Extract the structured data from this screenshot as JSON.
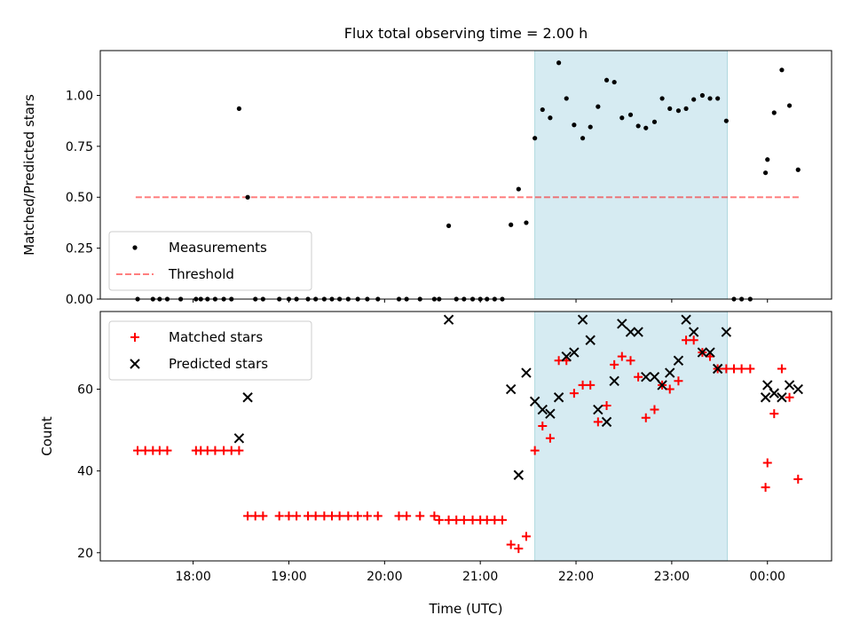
{
  "title": "Flux total observing time = 2.00 h",
  "chart_data": [
    {
      "type": "scatter",
      "ylabel": "Matched/Predicted stars",
      "xlim": [
        17.03,
        0.67
      ],
      "ylim": [
        0,
        1.22
      ],
      "yticks": [
        0.0,
        0.25,
        0.5,
        0.75,
        1.0
      ],
      "ytick_labels": [
        "0.00",
        "0.25",
        "0.50",
        "0.75",
        "1.00"
      ],
      "observing_window": [
        21.57,
        23.58
      ],
      "threshold": {
        "value": 0.5,
        "x_range": [
          17.4,
          0.33
        ]
      },
      "legend": {
        "placement": "lower-left",
        "entries": [
          "Measurements",
          "Threshold"
        ]
      },
      "series": [
        {
          "name": "Measurements",
          "color": "#000000",
          "points": [
            [
              17.42,
              0
            ],
            [
              17.58,
              0
            ],
            [
              17.65,
              0
            ],
            [
              17.73,
              0
            ],
            [
              17.87,
              0
            ],
            [
              18.03,
              0
            ],
            [
              18.08,
              0
            ],
            [
              18.15,
              0
            ],
            [
              18.23,
              0
            ],
            [
              18.32,
              0
            ],
            [
              18.4,
              0
            ],
            [
              18.48,
              0.935
            ],
            [
              18.57,
              0.5
            ],
            [
              18.65,
              0
            ],
            [
              18.73,
              0
            ],
            [
              18.9,
              0
            ],
            [
              19.0,
              0
            ],
            [
              19.08,
              0
            ],
            [
              19.2,
              0
            ],
            [
              19.28,
              0
            ],
            [
              19.37,
              0
            ],
            [
              19.45,
              0
            ],
            [
              19.53,
              0
            ],
            [
              19.62,
              0
            ],
            [
              19.72,
              0
            ],
            [
              19.82,
              0
            ],
            [
              19.93,
              0
            ],
            [
              20.15,
              0
            ],
            [
              20.23,
              0
            ],
            [
              20.37,
              0
            ],
            [
              20.52,
              0
            ],
            [
              20.57,
              0
            ],
            [
              20.67,
              0.36
            ],
            [
              20.75,
              0
            ],
            [
              20.83,
              0
            ],
            [
              20.92,
              0
            ],
            [
              21.0,
              0
            ],
            [
              21.07,
              0
            ],
            [
              21.15,
              0
            ],
            [
              21.23,
              0
            ],
            [
              21.32,
              0.365
            ],
            [
              21.4,
              0.54
            ],
            [
              21.48,
              0.375
            ],
            [
              21.57,
              0.79
            ],
            [
              21.65,
              0.93
            ],
            [
              21.73,
              0.89
            ],
            [
              21.82,
              1.16
            ],
            [
              21.9,
              0.985
            ],
            [
              21.98,
              0.855
            ],
            [
              22.07,
              0.79
            ],
            [
              22.15,
              0.845
            ],
            [
              22.23,
              0.945
            ],
            [
              22.32,
              1.075
            ],
            [
              22.4,
              1.065
            ],
            [
              22.48,
              0.89
            ],
            [
              22.57,
              0.905
            ],
            [
              22.65,
              0.85
            ],
            [
              22.73,
              0.84
            ],
            [
              22.82,
              0.87
            ],
            [
              22.9,
              0.985
            ],
            [
              22.98,
              0.935
            ],
            [
              23.07,
              0.925
            ],
            [
              23.15,
              0.935
            ],
            [
              23.23,
              0.98
            ],
            [
              23.32,
              1.0
            ],
            [
              23.4,
              0.985
            ],
            [
              23.48,
              0.985
            ],
            [
              23.57,
              0.875
            ],
            [
              23.65,
              0
            ],
            [
              23.73,
              0
            ],
            [
              23.82,
              0
            ],
            [
              23.98,
              0.62
            ],
            [
              24.0,
              0.685
            ],
            [
              24.07,
              0.915
            ],
            [
              24.15,
              1.125
            ],
            [
              24.23,
              0.95
            ],
            [
              24.32,
              0.635
            ]
          ]
        }
      ]
    },
    {
      "type": "scatter",
      "xlabel": "Time (UTC)",
      "ylabel": "Count",
      "xlim": [
        17.03,
        0.67
      ],
      "ylim": [
        18,
        79
      ],
      "yticks": [
        20,
        40,
        60
      ],
      "ytick_labels": [
        "20",
        "40",
        "60"
      ],
      "xtick_labels": [
        "18:00",
        "19:00",
        "20:00",
        "21:00",
        "22:00",
        "23:00",
        "00:00"
      ],
      "observing_window": [
        21.57,
        23.58
      ],
      "legend": {
        "placement": "top-left",
        "entries": [
          "Matched stars",
          "Predicted stars"
        ]
      },
      "series": [
        {
          "name": "Matched stars",
          "color": "#ff0000",
          "marker": "plus",
          "points": [
            [
              17.42,
              45
            ],
            [
              17.5,
              45
            ],
            [
              17.58,
              45
            ],
            [
              17.65,
              45
            ],
            [
              17.73,
              45
            ],
            [
              18.03,
              45
            ],
            [
              18.08,
              45
            ],
            [
              18.15,
              45
            ],
            [
              18.23,
              45
            ],
            [
              18.32,
              45
            ],
            [
              18.4,
              45
            ],
            [
              18.48,
              45
            ],
            [
              18.57,
              29
            ],
            [
              18.65,
              29
            ],
            [
              18.73,
              29
            ],
            [
              18.9,
              29
            ],
            [
              19.0,
              29
            ],
            [
              19.08,
              29
            ],
            [
              19.2,
              29
            ],
            [
              19.28,
              29
            ],
            [
              19.37,
              29
            ],
            [
              19.45,
              29
            ],
            [
              19.53,
              29
            ],
            [
              19.62,
              29
            ],
            [
              19.72,
              29
            ],
            [
              19.82,
              29
            ],
            [
              19.93,
              29
            ],
            [
              20.15,
              29
            ],
            [
              20.23,
              29
            ],
            [
              20.37,
              29
            ],
            [
              20.52,
              29
            ],
            [
              20.57,
              28
            ],
            [
              20.67,
              28
            ],
            [
              20.75,
              28
            ],
            [
              20.83,
              28
            ],
            [
              20.92,
              28
            ],
            [
              21.0,
              28
            ],
            [
              21.07,
              28
            ],
            [
              21.15,
              28
            ],
            [
              21.23,
              28
            ],
            [
              21.32,
              22
            ],
            [
              21.4,
              21
            ],
            [
              21.48,
              24
            ],
            [
              21.57,
              45
            ],
            [
              21.65,
              51
            ],
            [
              21.73,
              48
            ],
            [
              21.82,
              67
            ],
            [
              21.9,
              67
            ],
            [
              21.98,
              59
            ],
            [
              22.07,
              61
            ],
            [
              22.15,
              61
            ],
            [
              22.23,
              52
            ],
            [
              22.32,
              56
            ],
            [
              22.4,
              66
            ],
            [
              22.48,
              68
            ],
            [
              22.57,
              67
            ],
            [
              22.65,
              63
            ],
            [
              22.73,
              53
            ],
            [
              22.82,
              55
            ],
            [
              22.9,
              61
            ],
            [
              22.98,
              60
            ],
            [
              23.07,
              62
            ],
            [
              23.15,
              72
            ],
            [
              23.23,
              72
            ],
            [
              23.32,
              69
            ],
            [
              23.4,
              68
            ],
            [
              23.48,
              65
            ],
            [
              23.57,
              65
            ],
            [
              23.65,
              65
            ],
            [
              23.73,
              65
            ],
            [
              23.82,
              65
            ],
            [
              23.98,
              36
            ],
            [
              24.0,
              42
            ],
            [
              24.07,
              54
            ],
            [
              24.15,
              65
            ],
            [
              24.23,
              58
            ],
            [
              24.32,
              38
            ]
          ]
        },
        {
          "name": "Predicted stars",
          "color": "#000000",
          "marker": "x",
          "points": [
            [
              18.48,
              48
            ],
            [
              18.57,
              58
            ],
            [
              20.67,
              77
            ],
            [
              21.32,
              60
            ],
            [
              21.4,
              39
            ],
            [
              21.48,
              64
            ],
            [
              21.57,
              57
            ],
            [
              21.65,
              55
            ],
            [
              21.73,
              54
            ],
            [
              21.82,
              58
            ],
            [
              21.9,
              68
            ],
            [
              21.98,
              69
            ],
            [
              22.07,
              77
            ],
            [
              22.15,
              72
            ],
            [
              22.23,
              55
            ],
            [
              22.32,
              52
            ],
            [
              22.4,
              62
            ],
            [
              22.48,
              76
            ],
            [
              22.57,
              74
            ],
            [
              22.65,
              74
            ],
            [
              22.73,
              63
            ],
            [
              22.82,
              63
            ],
            [
              22.9,
              61
            ],
            [
              22.98,
              64
            ],
            [
              23.07,
              67
            ],
            [
              23.15,
              77
            ],
            [
              23.23,
              74
            ],
            [
              23.32,
              69
            ],
            [
              23.4,
              69
            ],
            [
              23.48,
              65
            ],
            [
              23.57,
              74
            ],
            [
              23.98,
              58
            ],
            [
              24.0,
              61
            ],
            [
              24.07,
              59
            ],
            [
              24.15,
              58
            ],
            [
              24.23,
              61
            ],
            [
              24.32,
              60
            ]
          ]
        }
      ]
    }
  ]
}
